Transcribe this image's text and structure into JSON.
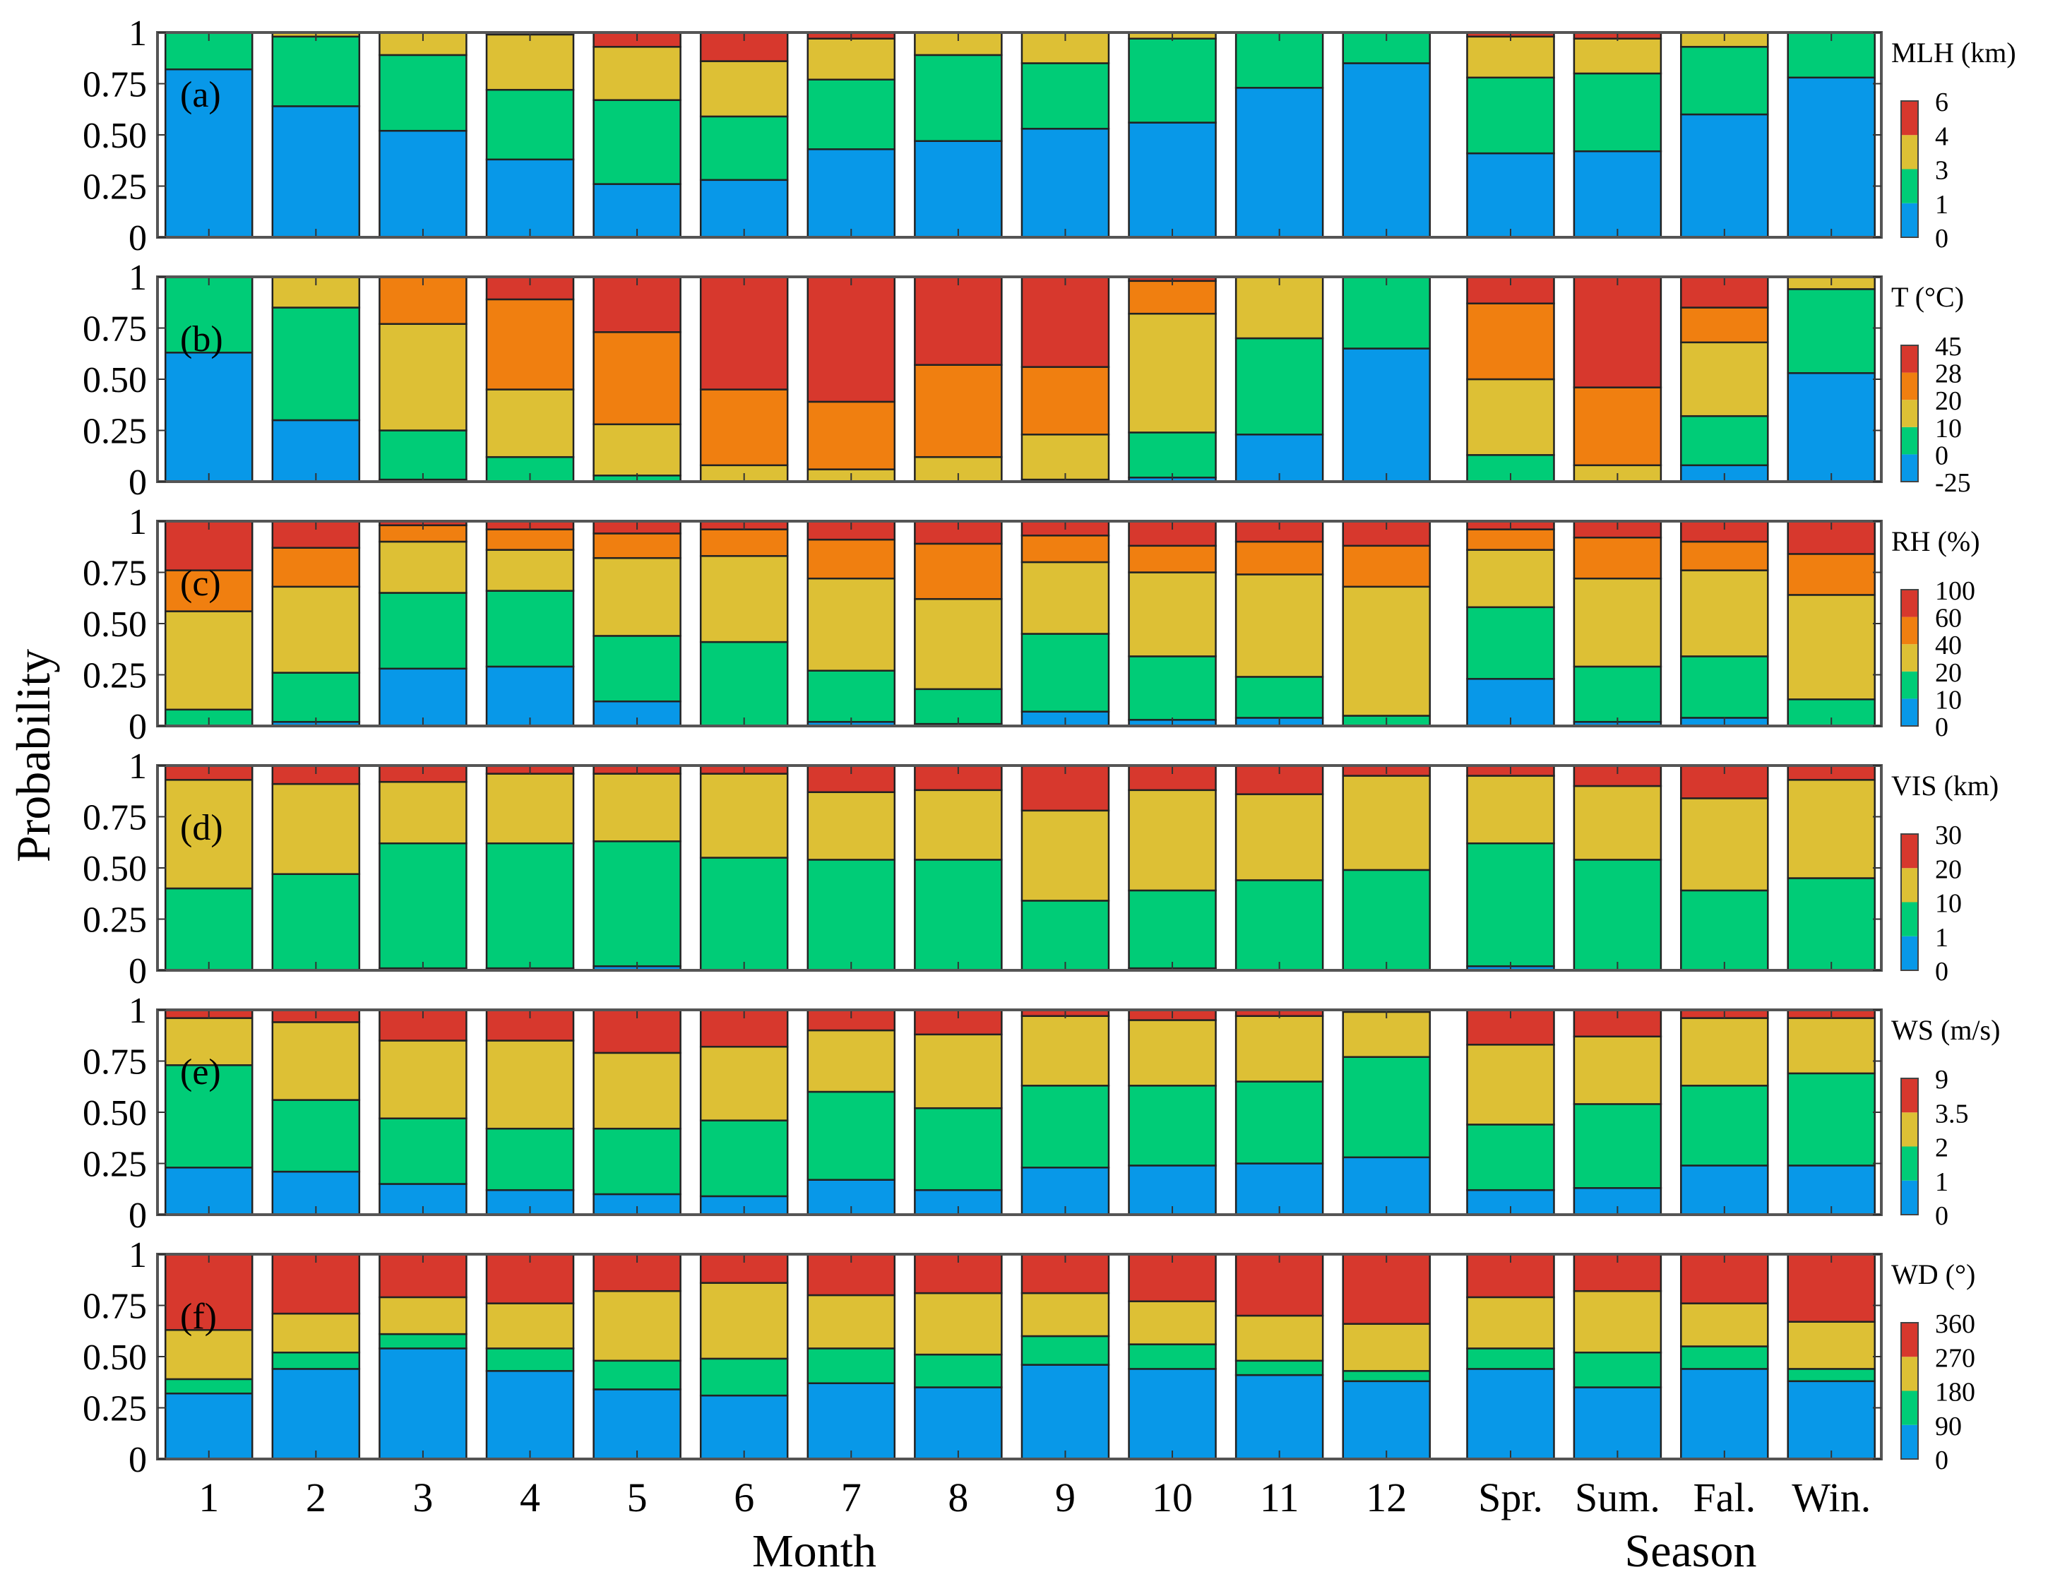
{
  "chart_data": {
    "type": "bar",
    "stacked": true,
    "ylabel": "Probability",
    "xlabel_month": "Month",
    "xlabel_season": "Season",
    "categories": [
      "1",
      "2",
      "3",
      "4",
      "5",
      "6",
      "7",
      "8",
      "9",
      "10",
      "11",
      "12",
      "Spr.",
      "Sum.",
      "Fal.",
      "Win."
    ],
    "ylim": [
      0,
      1
    ],
    "yticks": [
      "0",
      "0.25",
      "0.50",
      "0.75",
      "1"
    ],
    "colors": [
      "#0898E8",
      "#00CC77",
      "#DDC035",
      "#F07F10",
      "#D7382D"
    ],
    "panels": [
      {
        "label": "(a)",
        "variable": "MLH (km)",
        "colorbar_ticks": [
          "0",
          "1",
          "3",
          "4",
          "6"
        ],
        "class_colors": [
          "#0898E8",
          "#00CC77",
          "#DDC035",
          "#D7382D"
        ],
        "series": [
          {
            "values": [
              0.82,
              0.64,
              0.52,
              0.38,
              0.26,
              0.28,
              0.43,
              0.47,
              0.53,
              0.56,
              0.73,
              0.85,
              0.41,
              0.42,
              0.6,
              0.78
            ]
          },
          {
            "values": [
              0.18,
              0.34,
              0.37,
              0.34,
              0.41,
              0.31,
              0.34,
              0.42,
              0.32,
              0.41,
              0.27,
              0.15,
              0.37,
              0.38,
              0.33,
              0.22
            ]
          },
          {
            "values": [
              0.0,
              0.02,
              0.11,
              0.27,
              0.26,
              0.27,
              0.2,
              0.11,
              0.15,
              0.03,
              0.0,
              0.0,
              0.2,
              0.17,
              0.07,
              0.0
            ]
          },
          {
            "values": [
              0.0,
              0.0,
              0.0,
              0.01,
              0.07,
              0.14,
              0.03,
              0.0,
              0.0,
              0.0,
              0.0,
              0.0,
              0.02,
              0.03,
              0.0,
              0.0
            ]
          }
        ]
      },
      {
        "label": "(b)",
        "variable": "T (°C)",
        "colorbar_ticks": [
          "-25",
          "0",
          "10",
          "20",
          "28",
          "45"
        ],
        "class_colors": [
          "#0898E8",
          "#00CC77",
          "#DDC035",
          "#F07F10",
          "#D7382D"
        ],
        "series": [
          {
            "values": [
              0.63,
              0.3,
              0.01,
              0.0,
              0.0,
              0.0,
              0.0,
              0.0,
              0.01,
              0.02,
              0.23,
              0.65,
              0.0,
              0.0,
              0.08,
              0.53
            ]
          },
          {
            "values": [
              0.37,
              0.55,
              0.24,
              0.12,
              0.03,
              0.0,
              0.0,
              0.0,
              0.0,
              0.22,
              0.47,
              0.35,
              0.13,
              0.0,
              0.24,
              0.41
            ]
          },
          {
            "values": [
              0.0,
              0.15,
              0.52,
              0.33,
              0.25,
              0.08,
              0.06,
              0.12,
              0.22,
              0.58,
              0.3,
              0.0,
              0.37,
              0.08,
              0.36,
              0.06
            ]
          },
          {
            "values": [
              0.0,
              0.0,
              0.23,
              0.44,
              0.45,
              0.37,
              0.33,
              0.45,
              0.33,
              0.16,
              0.0,
              0.0,
              0.37,
              0.38,
              0.17,
              0.0
            ]
          },
          {
            "values": [
              0.0,
              0.0,
              0.0,
              0.11,
              0.27,
              0.55,
              0.61,
              0.43,
              0.44,
              0.02,
              0.0,
              0.0,
              0.13,
              0.54,
              0.15,
              0.0
            ]
          }
        ]
      },
      {
        "label": "(c)",
        "variable": "RH (%)",
        "colorbar_ticks": [
          "0",
          "10",
          "20",
          "40",
          "60",
          "100"
        ],
        "class_colors": [
          "#0898E8",
          "#00CC77",
          "#DDC035",
          "#F07F10",
          "#D7382D"
        ],
        "series": [
          {
            "values": [
              0.0,
              0.02,
              0.28,
              0.29,
              0.12,
              0.0,
              0.02,
              0.01,
              0.07,
              0.03,
              0.04,
              0.0,
              0.23,
              0.02,
              0.04,
              0.0
            ]
          },
          {
            "values": [
              0.08,
              0.24,
              0.37,
              0.37,
              0.32,
              0.41,
              0.25,
              0.17,
              0.38,
              0.31,
              0.2,
              0.05,
              0.35,
              0.27,
              0.3,
              0.13
            ]
          },
          {
            "values": [
              0.48,
              0.42,
              0.25,
              0.2,
              0.38,
              0.42,
              0.45,
              0.44,
              0.35,
              0.41,
              0.5,
              0.63,
              0.28,
              0.43,
              0.42,
              0.51
            ]
          },
          {
            "values": [
              0.2,
              0.19,
              0.08,
              0.1,
              0.12,
              0.13,
              0.19,
              0.27,
              0.13,
              0.13,
              0.16,
              0.2,
              0.1,
              0.2,
              0.14,
              0.2
            ]
          },
          {
            "values": [
              0.24,
              0.13,
              0.02,
              0.04,
              0.06,
              0.04,
              0.09,
              0.11,
              0.07,
              0.12,
              0.1,
              0.12,
              0.04,
              0.08,
              0.1,
              0.16
            ]
          }
        ]
      },
      {
        "label": "(d)",
        "variable": "VIS (km)",
        "colorbar_ticks": [
          "0",
          "1",
          "10",
          "20",
          "30"
        ],
        "class_colors": [
          "#0898E8",
          "#00CC77",
          "#DDC035",
          "#D7382D"
        ],
        "series": [
          {
            "values": [
              0.0,
              0.0,
              0.01,
              0.01,
              0.02,
              0.0,
              0.0,
              0.0,
              0.0,
              0.01,
              0.0,
              0.0,
              0.02,
              0.0,
              0.0,
              0.0
            ]
          },
          {
            "values": [
              0.4,
              0.47,
              0.61,
              0.61,
              0.61,
              0.55,
              0.54,
              0.54,
              0.34,
              0.38,
              0.44,
              0.49,
              0.6,
              0.54,
              0.39,
              0.45
            ]
          },
          {
            "values": [
              0.53,
              0.44,
              0.3,
              0.34,
              0.33,
              0.41,
              0.33,
              0.34,
              0.44,
              0.49,
              0.42,
              0.46,
              0.33,
              0.36,
              0.45,
              0.48
            ]
          },
          {
            "values": [
              0.07,
              0.09,
              0.08,
              0.04,
              0.04,
              0.04,
              0.13,
              0.12,
              0.22,
              0.12,
              0.14,
              0.05,
              0.05,
              0.1,
              0.16,
              0.07
            ]
          }
        ]
      },
      {
        "label": "(e)",
        "variable": "WS (m/s)",
        "colorbar_ticks": [
          "0",
          "1",
          "2",
          "3.5",
          "9"
        ],
        "class_colors": [
          "#0898E8",
          "#00CC77",
          "#DDC035",
          "#D7382D"
        ],
        "series": [
          {
            "values": [
              0.23,
              0.21,
              0.15,
              0.12,
              0.1,
              0.09,
              0.17,
              0.12,
              0.23,
              0.24,
              0.25,
              0.28,
              0.12,
              0.13,
              0.24,
              0.24
            ]
          },
          {
            "values": [
              0.5,
              0.35,
              0.32,
              0.3,
              0.32,
              0.37,
              0.43,
              0.4,
              0.4,
              0.39,
              0.4,
              0.49,
              0.32,
              0.41,
              0.39,
              0.45
            ]
          },
          {
            "values": [
              0.23,
              0.38,
              0.38,
              0.43,
              0.37,
              0.36,
              0.3,
              0.36,
              0.34,
              0.32,
              0.32,
              0.22,
              0.39,
              0.33,
              0.33,
              0.27
            ]
          },
          {
            "values": [
              0.04,
              0.06,
              0.15,
              0.15,
              0.21,
              0.18,
              0.1,
              0.12,
              0.03,
              0.05,
              0.03,
              0.01,
              0.17,
              0.13,
              0.04,
              0.04
            ]
          }
        ]
      },
      {
        "label": "(f)",
        "variable": "WD (°)",
        "colorbar_ticks": [
          "0",
          "90",
          "180",
          "270",
          "360"
        ],
        "class_colors": [
          "#0898E8",
          "#00CC77",
          "#DDC035",
          "#D7382D"
        ],
        "series": [
          {
            "values": [
              0.32,
              0.44,
              0.54,
              0.43,
              0.34,
              0.31,
              0.37,
              0.35,
              0.46,
              0.44,
              0.41,
              0.38,
              0.44,
              0.35,
              0.44,
              0.38
            ]
          },
          {
            "values": [
              0.07,
              0.08,
              0.07,
              0.11,
              0.14,
              0.18,
              0.17,
              0.16,
              0.14,
              0.12,
              0.07,
              0.05,
              0.1,
              0.17,
              0.11,
              0.06
            ]
          },
          {
            "values": [
              0.24,
              0.19,
              0.18,
              0.22,
              0.34,
              0.37,
              0.26,
              0.3,
              0.21,
              0.21,
              0.22,
              0.23,
              0.25,
              0.3,
              0.21,
              0.23
            ]
          },
          {
            "values": [
              0.37,
              0.29,
              0.21,
              0.24,
              0.18,
              0.14,
              0.2,
              0.19,
              0.19,
              0.23,
              0.3,
              0.34,
              0.21,
              0.18,
              0.24,
              0.33
            ]
          }
        ]
      }
    ]
  }
}
